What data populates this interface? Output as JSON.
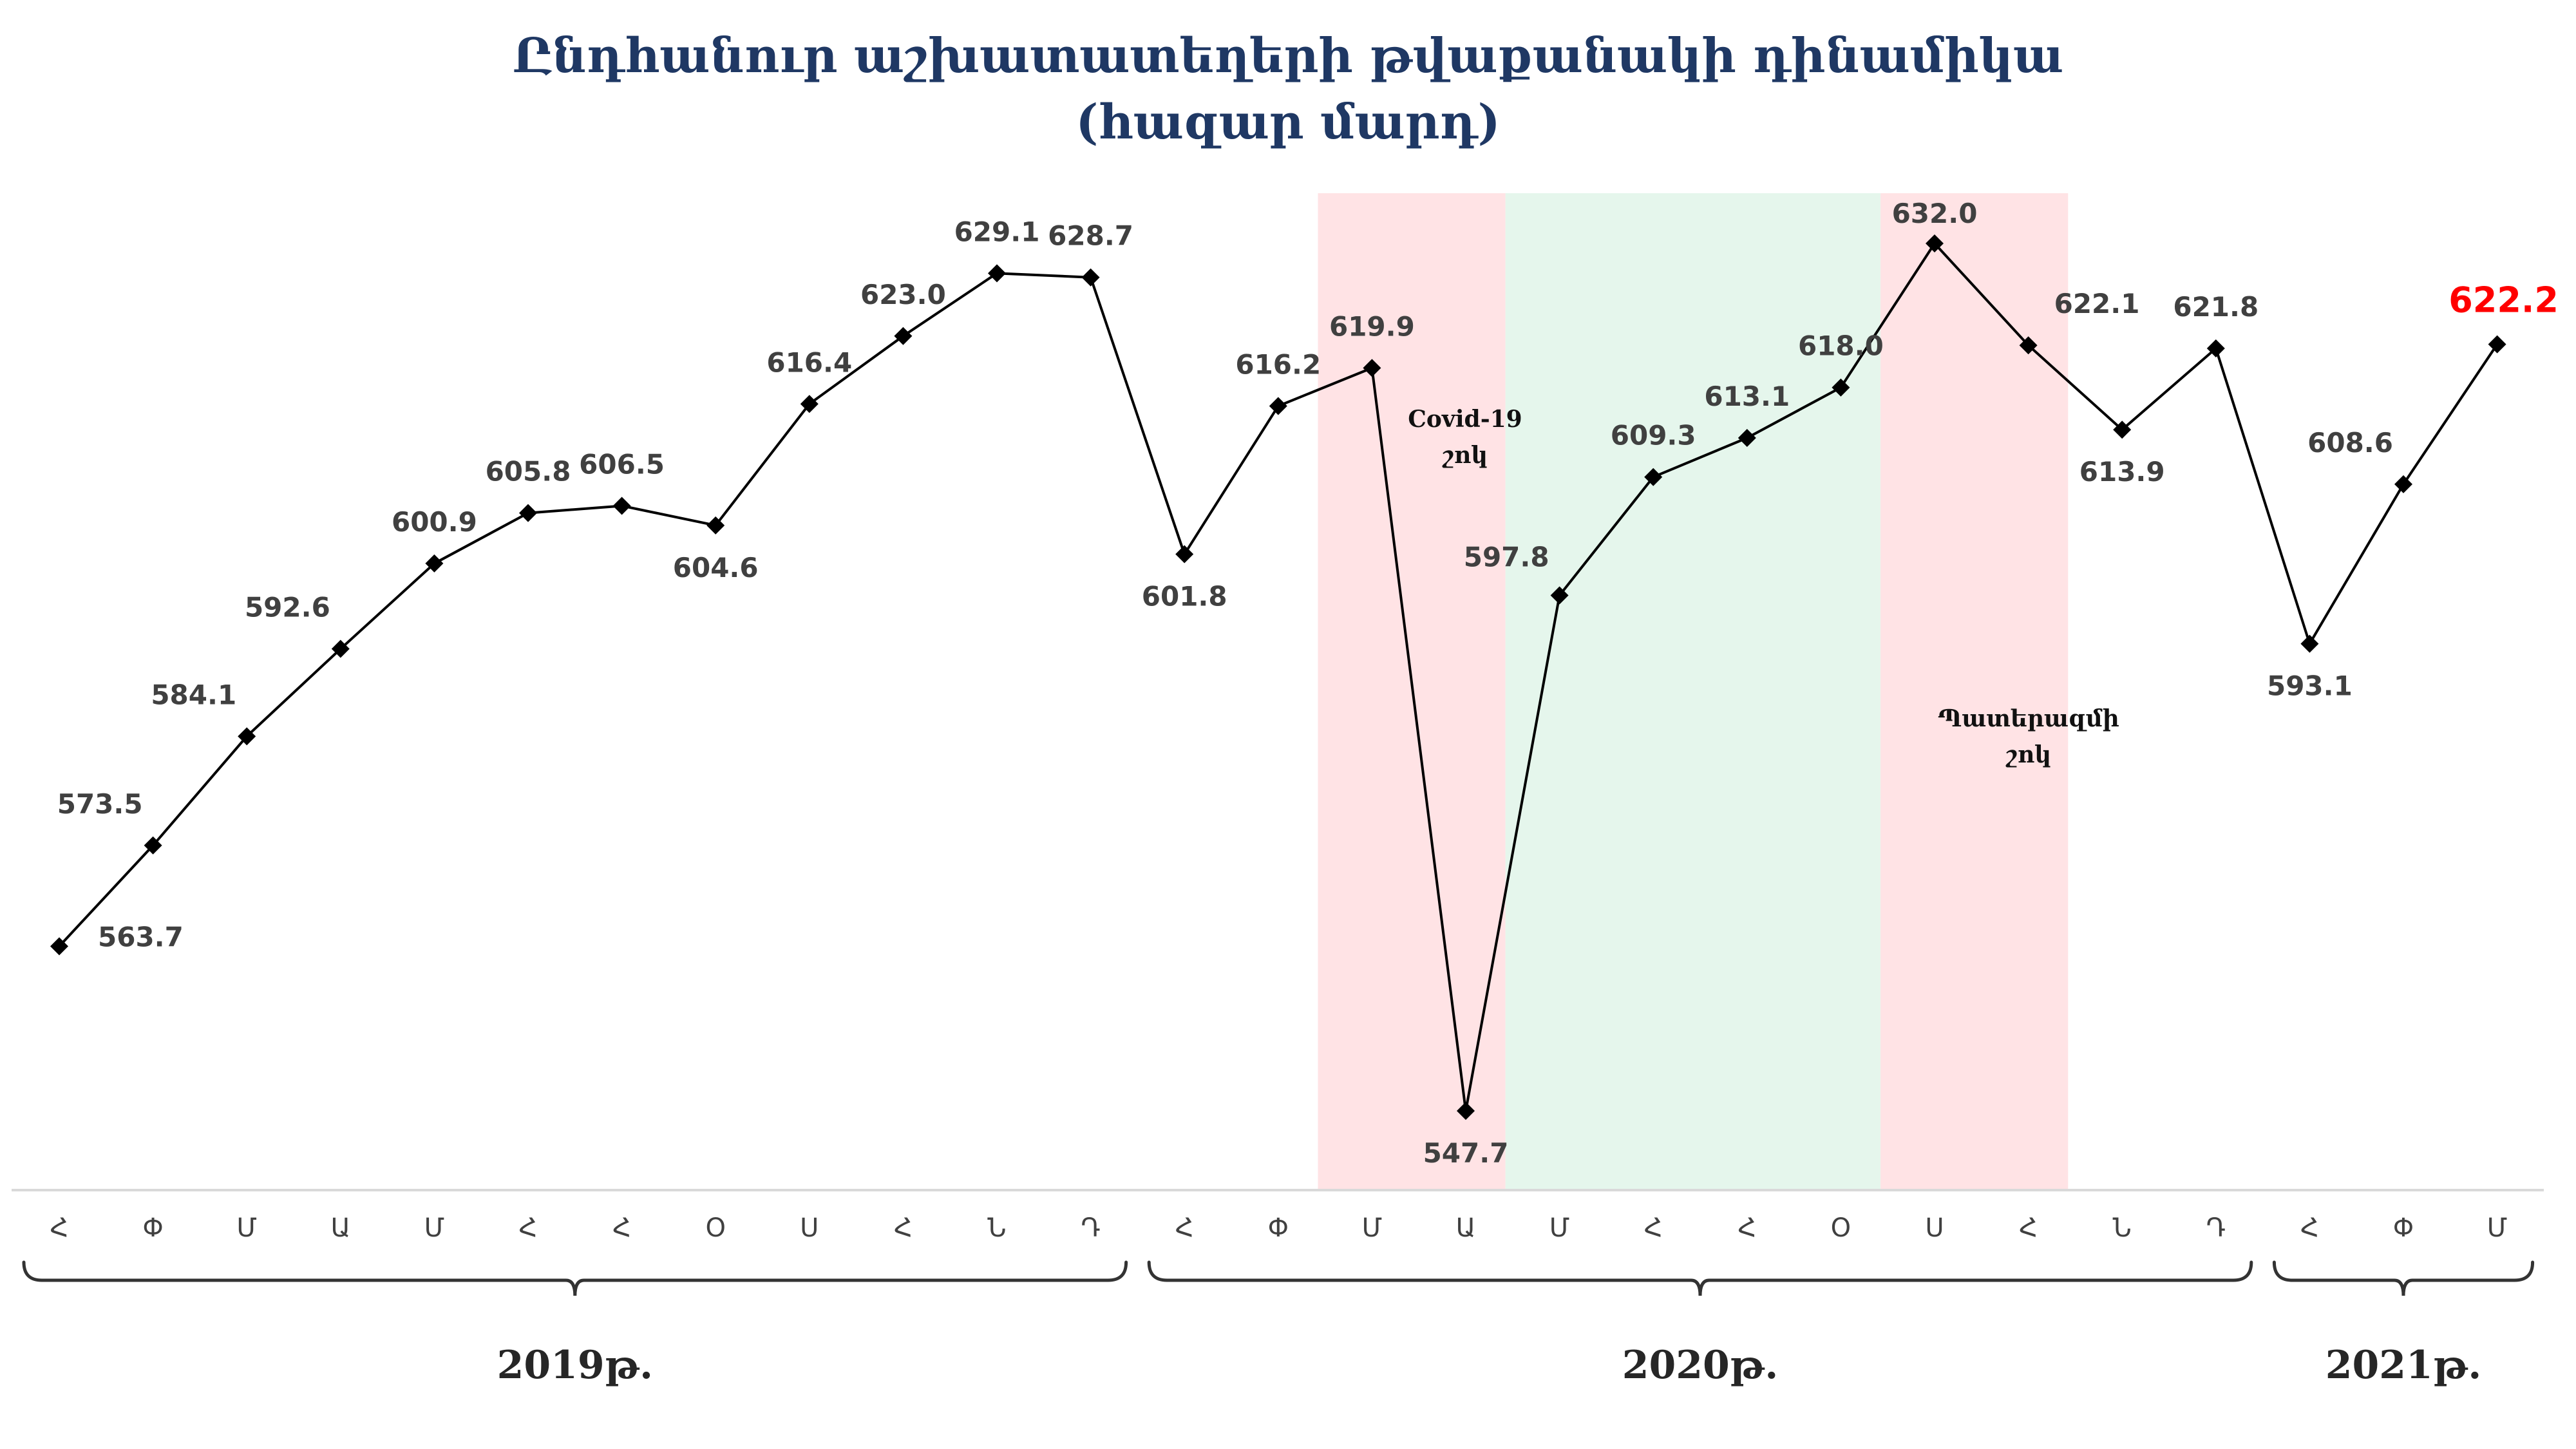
{
  "chart_data": {
    "type": "line",
    "title": "Ընդհանուր աշխատատեղերի թվաքանակի դինամիկա",
    "subtitle": "(հազար մարդ)",
    "xlabel": "",
    "ylabel": "",
    "ylim": [
      535,
      645
    ],
    "grid": false,
    "legend": "none",
    "colors": {
      "line": "#000000",
      "marker": "#000000",
      "label": "#404040",
      "highlight_label": "#ff0000",
      "covid_band": "#ffe3e5",
      "recovery_band": "#e5f6ec",
      "war_band": "#ffe3e5",
      "title": "#1f3864"
    },
    "categories": [
      "Հ",
      "Փ",
      "Մ",
      "Ա",
      "Մ",
      "Հ",
      "Հ",
      "Օ",
      "Ս",
      "Հ",
      "Ն",
      "Դ",
      "Հ",
      "Փ",
      "Մ",
      "Ա",
      "Մ",
      "Հ",
      "Հ",
      "Օ",
      "Ս",
      "Հ",
      "Ն",
      "Դ",
      "Հ",
      "Փ",
      "Մ"
    ],
    "series": [
      {
        "values": [
          563.7,
          573.5,
          584.1,
          592.6,
          600.9,
          605.8,
          606.5,
          604.6,
          616.4,
          623.0,
          629.1,
          628.7,
          601.8,
          616.2,
          619.9,
          547.7,
          597.8,
          609.3,
          613.1,
          618.0,
          632.0,
          622.1,
          613.9,
          621.8,
          593.1,
          608.6,
          622.2
        ],
        "labels": [
          "563.7",
          "573.5",
          "584.1",
          "592.6",
          "600.9",
          "605.8",
          "606.5",
          "604.6",
          "616.4",
          "623.0",
          "629.1",
          "628.7",
          "601.8",
          "616.2",
          "619.9",
          "547.7",
          "597.8",
          "609.3",
          "613.1",
          "618.0",
          "632.0",
          "622.1",
          "613.9",
          "621.8",
          "593.1",
          "608.6",
          "622.2"
        ]
      }
    ],
    "years": [
      {
        "label": "2019թ.",
        "from": 0,
        "to": 11
      },
      {
        "label": "2020թ.",
        "from": 12,
        "to": 23
      },
      {
        "label": "2021թ.",
        "from": 24,
        "to": 26
      }
    ],
    "periods": [
      {
        "label_line1": "Covid-19",
        "label_line2": "շոկ",
        "color": "#ffe3e5"
      },
      {
        "label_line1": "",
        "label_line2": "",
        "color": "#e5f6ec"
      },
      {
        "label_line1": "Պատերազմի",
        "label_line2": "շոկ",
        "color": "#ffe3e5"
      }
    ]
  }
}
